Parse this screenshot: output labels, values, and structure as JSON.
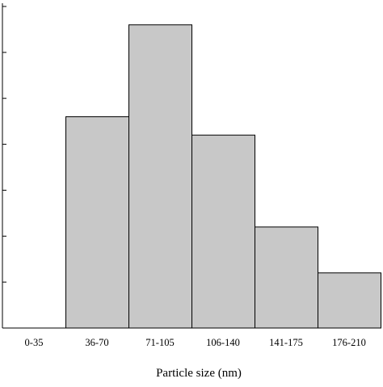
{
  "chart_data": {
    "type": "bar",
    "title": "",
    "xlabel": "Particle size (nm)",
    "ylabel": "",
    "categories": [
      "0-35",
      "36-70",
      "71-105",
      "106-140",
      "141-175",
      "176-210"
    ],
    "values": [
      0,
      46,
      66,
      42,
      22,
      12
    ],
    "ylim": [
      0,
      70
    ],
    "y_tick_step": 10,
    "y_tick_labels_shown": false,
    "grid": false,
    "legend": "none",
    "colors": {
      "bar_fill": "#c8c8c8",
      "bar_stroke": "#000000",
      "axis": "#000000"
    }
  }
}
